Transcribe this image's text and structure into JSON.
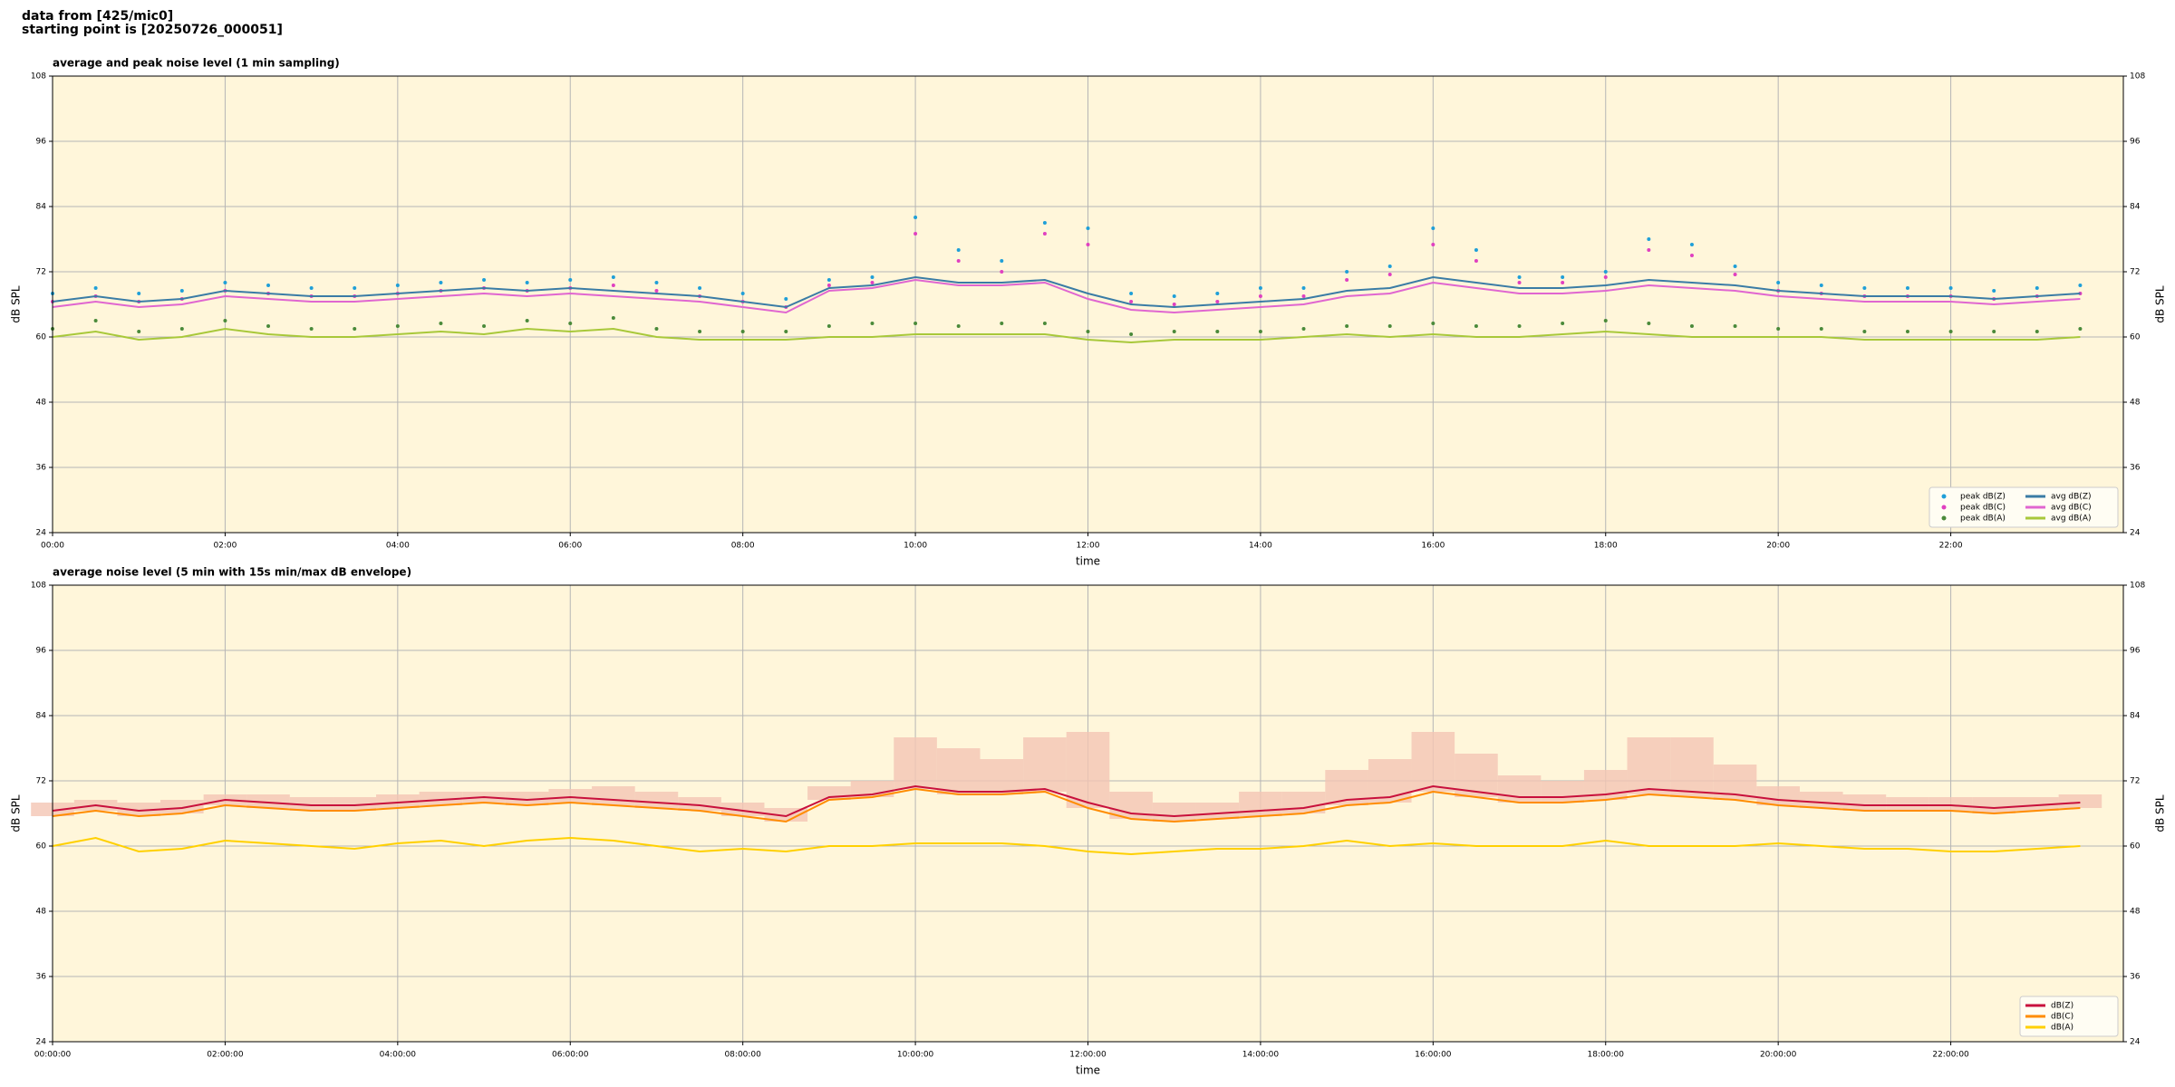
{
  "header": [
    "data from [425/mic0]",
    "starting point is [20250726_000051]"
  ],
  "chart_data": [
    {
      "type": "line",
      "title": "average and peak noise level (1 min sampling)",
      "xlabel": "time",
      "ylabel": "dB SPL",
      "xlim": [
        0,
        24
      ],
      "ylim": [
        24,
        108
      ],
      "yticks": [
        24,
        36,
        48,
        60,
        72,
        84,
        96,
        108
      ],
      "xticks": [
        {
          "value": 0,
          "label": "00:00"
        },
        {
          "value": 2,
          "label": "02:00"
        },
        {
          "value": 4,
          "label": "04:00"
        },
        {
          "value": 6,
          "label": "06:00"
        },
        {
          "value": 8,
          "label": "08:00"
        },
        {
          "value": 10,
          "label": "10:00"
        },
        {
          "value": 12,
          "label": "12:00"
        },
        {
          "value": 14,
          "label": "14:00"
        },
        {
          "value": 16,
          "label": "16:00"
        },
        {
          "value": 18,
          "label": "18:00"
        },
        {
          "value": 20,
          "label": "20:00"
        },
        {
          "value": 22,
          "label": "22:00"
        }
      ],
      "grid": true,
      "background": "#fff6da",
      "legend": "lower right",
      "legend_columns": 2,
      "x": [
        0,
        0.5,
        1,
        1.5,
        2,
        2.5,
        3,
        3.5,
        4,
        4.5,
        5,
        5.5,
        6,
        6.5,
        7,
        7.5,
        8,
        8.5,
        9,
        9.5,
        10,
        10.5,
        11,
        11.5,
        12,
        12.5,
        13,
        13.5,
        14,
        14.5,
        15,
        15.5,
        16,
        16.5,
        17,
        17.5,
        18,
        18.5,
        19,
        19.5,
        20,
        20.5,
        21,
        21.5,
        22,
        22.5,
        23,
        23.5
      ],
      "series": [
        {
          "name": "peak dB(Z)",
          "style": "points",
          "color": "#1f9fd8",
          "values": [
            68,
            69,
            68,
            68.5,
            70,
            69.5,
            69,
            69,
            69.5,
            70,
            70.5,
            70,
            70.5,
            71,
            70,
            69,
            68,
            67,
            70.5,
            71,
            82,
            76,
            74,
            81,
            80,
            68,
            67.5,
            68,
            69,
            69,
            72,
            73,
            80,
            76,
            71,
            71,
            72,
            78,
            77,
            73,
            70,
            69.5,
            69,
            69,
            69,
            68.5,
            69,
            69.5
          ]
        },
        {
          "name": "peak dB(C)",
          "style": "points",
          "color": "#e040c0",
          "values": [
            66.5,
            67.5,
            66.5,
            67,
            68.5,
            68,
            67.5,
            67.5,
            68,
            68.5,
            69,
            68.5,
            69,
            69.5,
            68.5,
            67.5,
            66.5,
            65.5,
            69.5,
            70,
            79,
            74,
            72,
            79,
            77,
            66.5,
            66,
            66.5,
            67.5,
            67.5,
            70.5,
            71.5,
            77,
            74,
            70,
            70,
            71,
            76,
            75,
            71.5,
            68.5,
            68,
            67.5,
            67.5,
            67.5,
            67,
            67.5,
            68
          ]
        },
        {
          "name": "peak dB(A)",
          "style": "points",
          "color": "#4a8a3a",
          "values": [
            61.5,
            63,
            61,
            61.5,
            63,
            62,
            61.5,
            61.5,
            62,
            62.5,
            62,
            63,
            62.5,
            63.5,
            61.5,
            61,
            61,
            61,
            62,
            62.5,
            62.5,
            62,
            62.5,
            62.5,
            61,
            60.5,
            61,
            61,
            61,
            61.5,
            62,
            62,
            62.5,
            62,
            62,
            62.5,
            63,
            62.5,
            62,
            62,
            61.5,
            61.5,
            61,
            61,
            61,
            61,
            61,
            61.5
          ]
        },
        {
          "name": "avg dB(Z)",
          "style": "line",
          "color": "#3a7ca5",
          "values": [
            66.5,
            67.5,
            66.5,
            67,
            68.5,
            68,
            67.5,
            67.5,
            68,
            68.5,
            69,
            68.5,
            69,
            68.5,
            68,
            67.5,
            66.5,
            65.5,
            69,
            69.5,
            71,
            70,
            70,
            70.5,
            68,
            66,
            65.5,
            66,
            66.5,
            67,
            68.5,
            69,
            71,
            70,
            69,
            69,
            69.5,
            70.5,
            70,
            69.5,
            68.5,
            68,
            67.5,
            67.5,
            67.5,
            67,
            67.5,
            68
          ]
        },
        {
          "name": "avg dB(C)",
          "style": "line",
          "color": "#e066d0",
          "values": [
            65.5,
            66.5,
            65.5,
            66,
            67.5,
            67,
            66.5,
            66.5,
            67,
            67.5,
            68,
            67.5,
            68,
            67.5,
            67,
            66.5,
            65.5,
            64.5,
            68.5,
            69,
            70.5,
            69.5,
            69.5,
            70,
            67,
            65,
            64.5,
            65,
            65.5,
            66,
            67.5,
            68,
            70,
            69,
            68,
            68,
            68.5,
            69.5,
            69,
            68.5,
            67.5,
            67,
            66.5,
            66.5,
            66.5,
            66,
            66.5,
            67
          ]
        },
        {
          "name": "avg dB(A)",
          "style": "line",
          "color": "#a8c83a",
          "values": [
            60,
            61,
            59.5,
            60,
            61.5,
            60.5,
            60,
            60,
            60.5,
            61,
            60.5,
            61.5,
            61,
            61.5,
            60,
            59.5,
            59.5,
            59.5,
            60,
            60,
            60.5,
            60.5,
            60.5,
            60.5,
            59.5,
            59,
            59.5,
            59.5,
            59.5,
            60,
            60.5,
            60,
            60.5,
            60,
            60,
            60.5,
            61,
            60.5,
            60,
            60,
            60,
            60,
            59.5,
            59.5,
            59.5,
            59.5,
            59.5,
            60
          ]
        }
      ]
    },
    {
      "type": "line",
      "title": "average noise level (5 min with 15s min/max dB envelope)",
      "xlabel": "time",
      "ylabel": "dB SPL",
      "xlim": [
        0,
        24
      ],
      "ylim": [
        24,
        108
      ],
      "yticks": [
        24,
        36,
        48,
        60,
        72,
        84,
        96,
        108
      ],
      "xticks": [
        {
          "value": 0,
          "label": "00:00:00"
        },
        {
          "value": 2,
          "label": "02:00:00"
        },
        {
          "value": 4,
          "label": "04:00:00"
        },
        {
          "value": 6,
          "label": "06:00:00"
        },
        {
          "value": 8,
          "label": "08:00:00"
        },
        {
          "value": 10,
          "label": "10:00:00"
        },
        {
          "value": 12,
          "label": "12:00:00"
        },
        {
          "value": 14,
          "label": "14:00:00"
        },
        {
          "value": 16,
          "label": "16:00:00"
        },
        {
          "value": 18,
          "label": "18:00:00"
        },
        {
          "value": 20,
          "label": "20:00:00"
        },
        {
          "value": 22,
          "label": "22:00:00"
        }
      ],
      "grid": true,
      "background": "#fff6da",
      "legend": "lower right",
      "legend_columns": 1,
      "x": [
        0,
        0.5,
        1,
        1.5,
        2,
        2.5,
        3,
        3.5,
        4,
        4.5,
        5,
        5.5,
        6,
        6.5,
        7,
        7.5,
        8,
        8.5,
        9,
        9.5,
        10,
        10.5,
        11,
        11.5,
        12,
        12.5,
        13,
        13.5,
        14,
        14.5,
        15,
        15.5,
        16,
        16.5,
        17,
        17.5,
        18,
        18.5,
        19,
        19.5,
        20,
        20.5,
        21,
        21.5,
        22,
        22.5,
        23,
        23.5
      ],
      "envelope": {
        "color": "#f4c6b4",
        "values": [
          68,
          68.5,
          68,
          68.5,
          69.5,
          69.5,
          69,
          69,
          69.5,
          70,
          70,
          70,
          70.5,
          71,
          70,
          69,
          68,
          67,
          71,
          72,
          80,
          78,
          76,
          80,
          81,
          70,
          68,
          68,
          70,
          70,
          74,
          76,
          81,
          77,
          73,
          72,
          74,
          80,
          80,
          75,
          71,
          70,
          69.5,
          69,
          69,
          69,
          69,
          69.5
        ]
      },
      "series": [
        {
          "name": "dB(Z)",
          "style": "line",
          "color": "#c8103c",
          "values": [
            66.5,
            67.5,
            66.5,
            67,
            68.5,
            68,
            67.5,
            67.5,
            68,
            68.5,
            69,
            68.5,
            69,
            68.5,
            68,
            67.5,
            66.5,
            65.5,
            69,
            69.5,
            71,
            70,
            70,
            70.5,
            68,
            66,
            65.5,
            66,
            66.5,
            67,
            68.5,
            69,
            71,
            70,
            69,
            69,
            69.5,
            70.5,
            70,
            69.5,
            68.5,
            68,
            67.5,
            67.5,
            67.5,
            67,
            67.5,
            68
          ]
        },
        {
          "name": "dB(C)",
          "style": "line",
          "color": "#ff8c00",
          "values": [
            65.5,
            66.5,
            65.5,
            66,
            67.5,
            67,
            66.5,
            66.5,
            67,
            67.5,
            68,
            67.5,
            68,
            67.5,
            67,
            66.5,
            65.5,
            64.5,
            68.5,
            69,
            70.5,
            69.5,
            69.5,
            70,
            67,
            65,
            64.5,
            65,
            65.5,
            66,
            67.5,
            68,
            70,
            69,
            68,
            68,
            68.5,
            69.5,
            69,
            68.5,
            67.5,
            67,
            66.5,
            66.5,
            66.5,
            66,
            66.5,
            67
          ]
        },
        {
          "name": "dB(A)",
          "style": "line",
          "color": "#ffd000",
          "values": [
            60,
            61.5,
            59,
            59.5,
            61,
            60.5,
            60,
            59.5,
            60.5,
            61,
            60,
            61,
            61.5,
            61,
            60,
            59,
            59.5,
            59,
            60,
            60,
            60.5,
            60.5,
            60.5,
            60,
            59,
            58.5,
            59,
            59.5,
            59.5,
            60,
            61,
            60,
            60.5,
            60,
            60,
            60,
            61,
            60,
            60,
            60,
            60.5,
            60,
            59.5,
            59.5,
            59,
            59,
            59.5,
            60
          ]
        }
      ]
    }
  ]
}
